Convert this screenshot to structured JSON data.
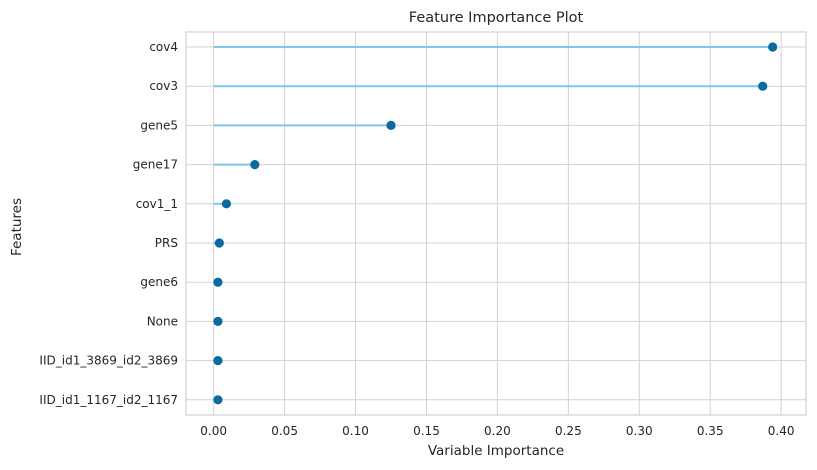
{
  "chart_data": {
    "type": "lollipop",
    "title": "Feature Importance Plot",
    "xlabel": "Variable Importance",
    "ylabel": "Features",
    "xlim": [
      -0.0195,
      0.4175
    ],
    "xticks": [
      "0.00",
      "0.05",
      "0.10",
      "0.15",
      "0.20",
      "0.25",
      "0.30",
      "0.35",
      "0.40"
    ],
    "xtick_values": [
      0.0,
      0.05,
      0.1,
      0.15,
      0.2,
      0.25,
      0.3,
      0.35,
      0.4
    ],
    "grid": true,
    "categories": [
      "cov4",
      "cov3",
      "gene5",
      "gene17",
      "cov1_1",
      "PRS",
      "gene6",
      "None",
      "IID_id1_3869_id2_3869",
      "IID_id1_1167_id2_1167"
    ],
    "values": [
      0.394,
      0.387,
      0.125,
      0.029,
      0.009,
      0.004,
      0.003,
      0.003,
      0.003,
      0.003
    ]
  },
  "colors": {
    "stem": "#7fc6ea",
    "marker": "#0b6aa2",
    "grid": "#d2d2d2",
    "frame": "#c9c9c9",
    "text": "#262626"
  }
}
